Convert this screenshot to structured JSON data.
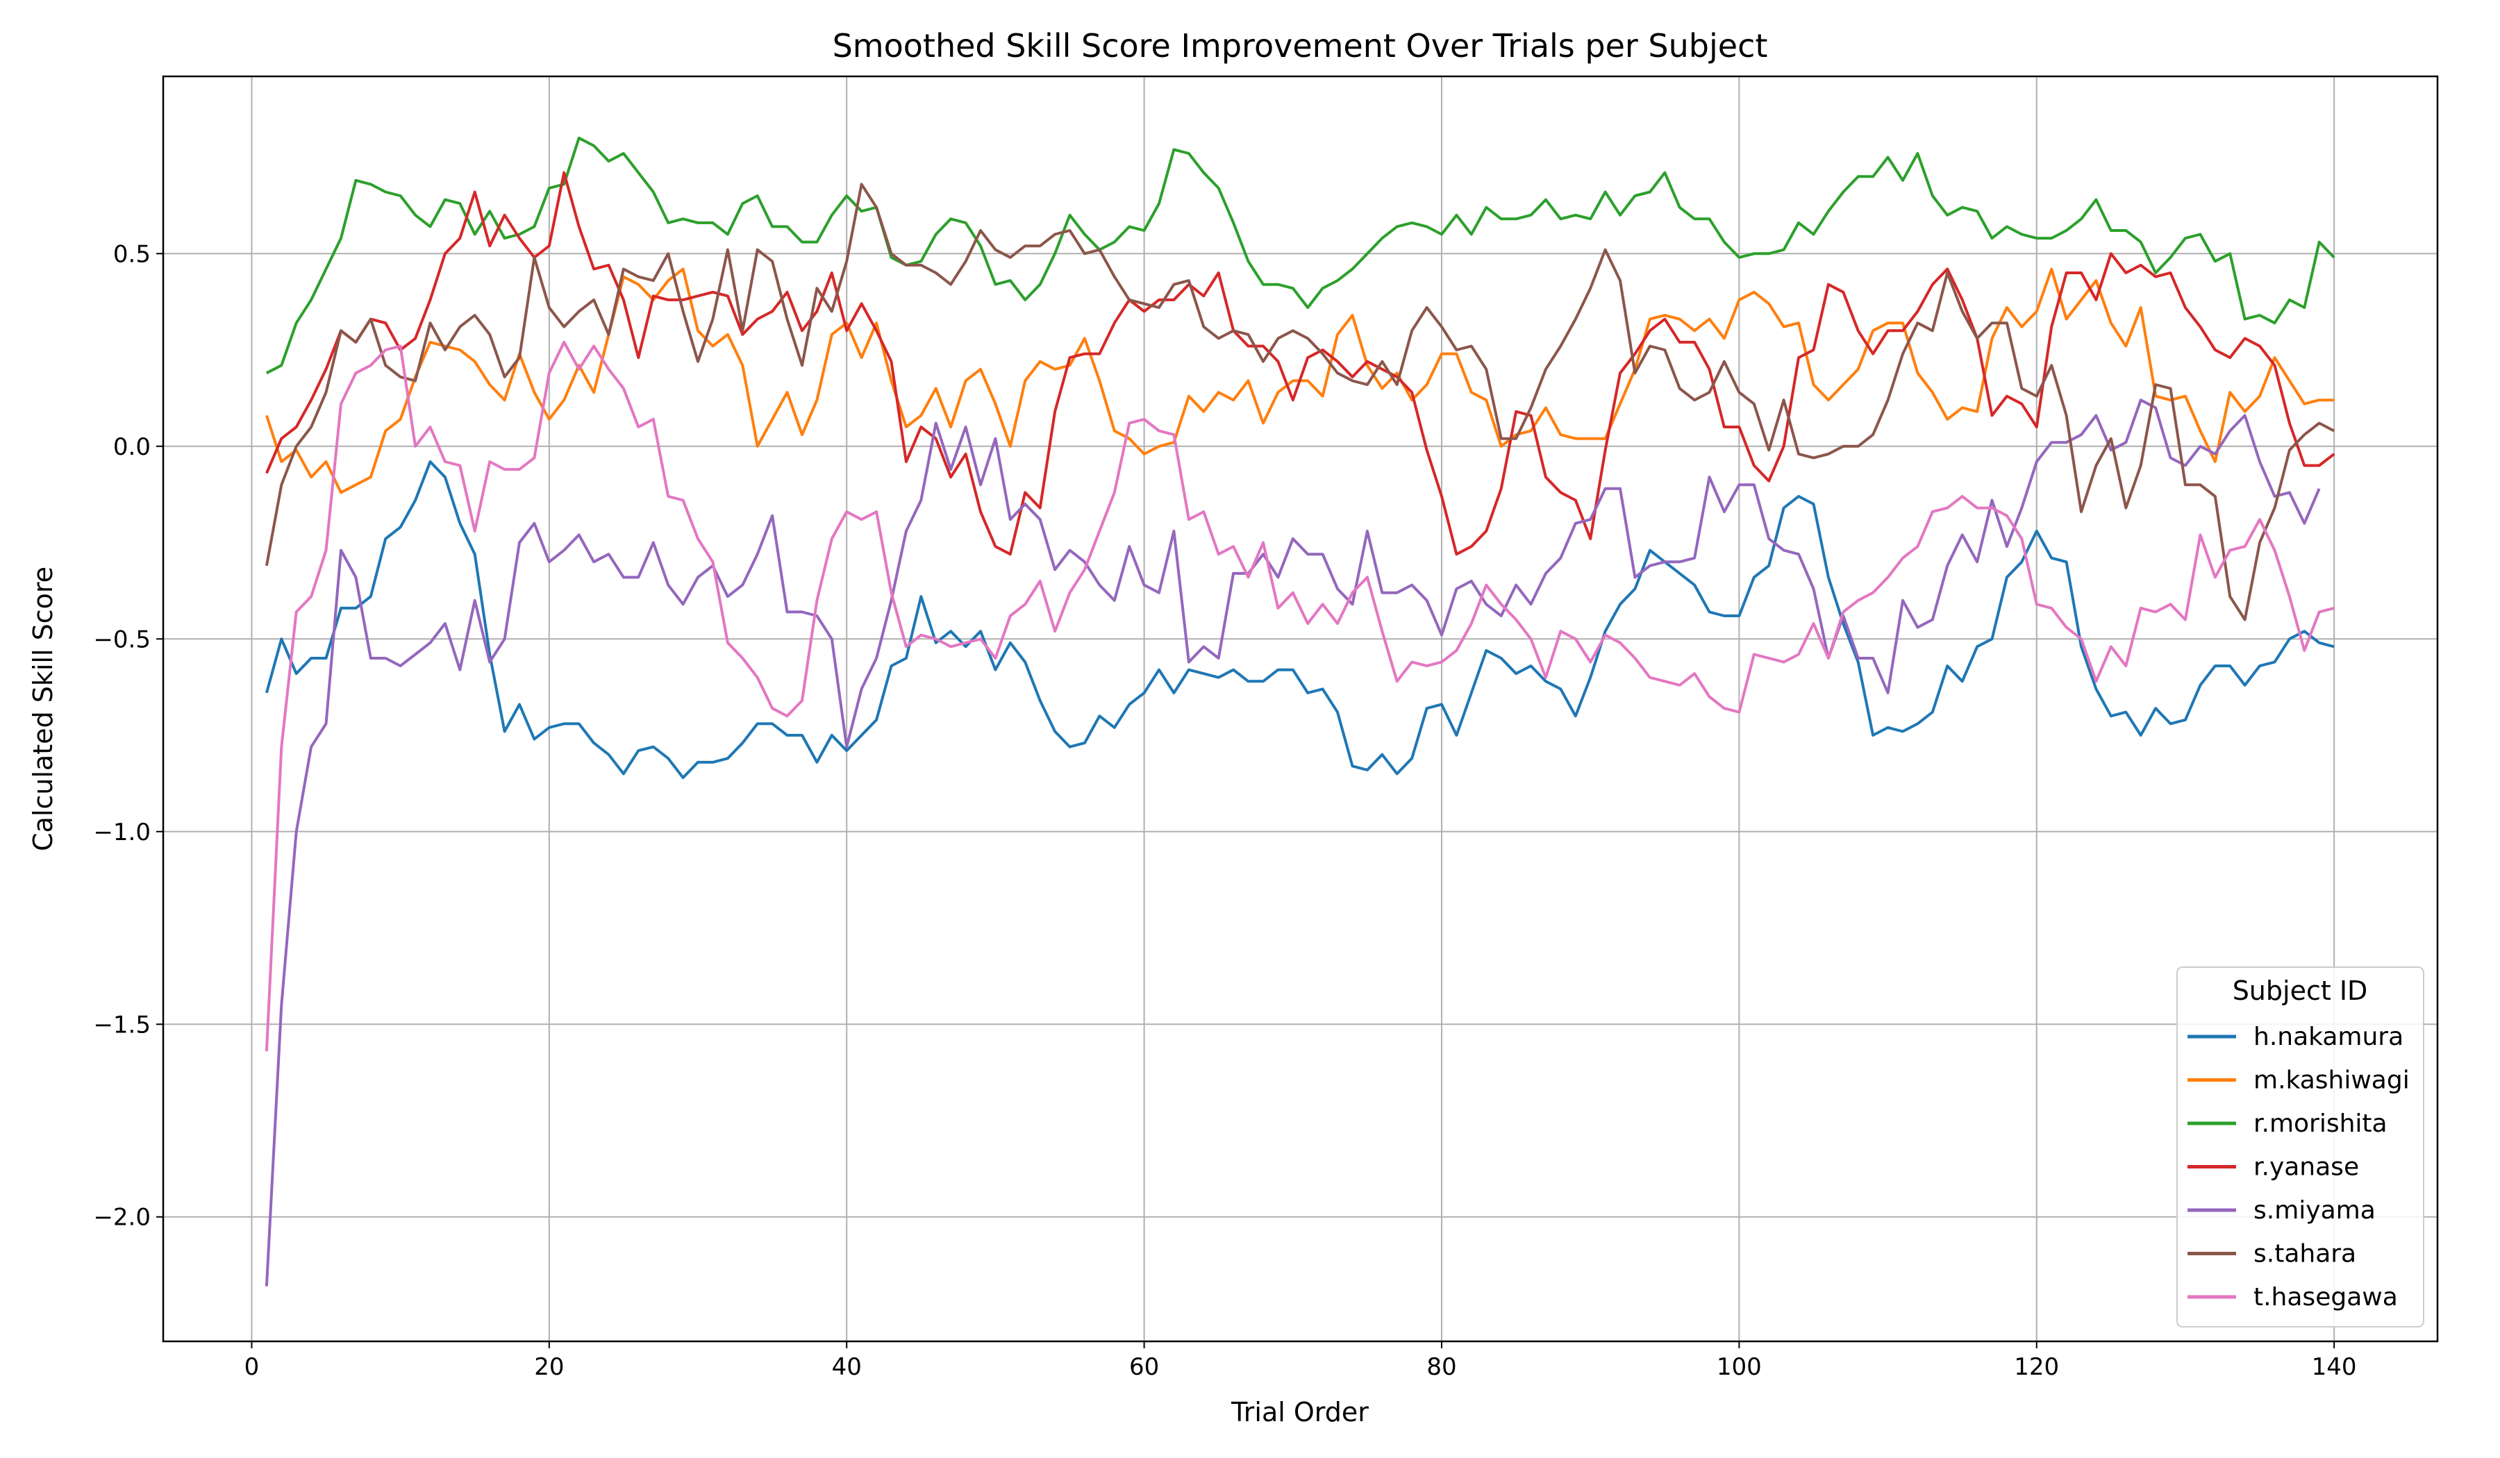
{
  "chart_data": {
    "type": "line",
    "title": "Smoothed Skill Score Improvement Over Trials per Subject",
    "xlabel": "Trial Order",
    "ylabel": "Calculated Skill Score",
    "xlim": [
      -5.95,
      146.95
    ],
    "ylim": [
      -2.323,
      0.96
    ],
    "xticks": [
      0,
      20,
      40,
      60,
      80,
      100,
      120,
      140
    ],
    "xtick_labels": [
      "0",
      "20",
      "40",
      "60",
      "80",
      "100",
      "120",
      "140"
    ],
    "yticks": [
      -2.0,
      -1.5,
      -1.0,
      -0.5,
      0.0,
      0.5
    ],
    "ytick_labels": [
      "−2.0",
      "−1.5",
      "−1.0",
      "−0.5",
      "0.0",
      "0.5"
    ],
    "grid": true,
    "legend": {
      "title": "Subject ID",
      "placement": "lower-right"
    },
    "x_start": 1,
    "series": [
      {
        "name": "h.nakamura",
        "color": "#1f77b4",
        "values": [
          -0.64,
          -0.5,
          -0.59,
          -0.55,
          -0.55,
          -0.42,
          -0.42,
          -0.39,
          -0.24,
          -0.21,
          -0.14,
          -0.04,
          -0.08,
          -0.2,
          -0.28,
          -0.54,
          -0.74,
          -0.67,
          -0.76,
          -0.73,
          -0.72,
          -0.72,
          -0.77,
          -0.8,
          -0.85,
          -0.79,
          -0.78,
          -0.81,
          -0.86,
          -0.82,
          -0.82,
          -0.81,
          -0.77,
          -0.72,
          -0.72,
          -0.75,
          -0.75,
          -0.82,
          -0.75,
          -0.79,
          -0.75,
          -0.71,
          -0.57,
          -0.55,
          -0.39,
          -0.51,
          -0.48,
          -0.52,
          -0.48,
          -0.58,
          -0.51,
          -0.56,
          -0.66,
          -0.74,
          -0.78,
          -0.77,
          -0.7,
          -0.73,
          -0.67,
          -0.64,
          -0.58,
          -0.64,
          -0.58,
          -0.59,
          -0.6,
          -0.58,
          -0.61,
          -0.61,
          -0.58,
          -0.58,
          -0.64,
          -0.63,
          -0.69,
          -0.83,
          -0.84,
          -0.8,
          -0.85,
          -0.81,
          -0.68,
          -0.67,
          -0.75,
          -0.64,
          -0.53,
          -0.55,
          -0.59,
          -0.57,
          -0.61,
          -0.63,
          -0.7,
          -0.6,
          -0.48,
          -0.41,
          -0.37,
          -0.27,
          -0.3,
          -0.33,
          -0.36,
          -0.43,
          -0.44,
          -0.44,
          -0.34,
          -0.31,
          -0.16,
          -0.13,
          -0.15,
          -0.34,
          -0.46,
          -0.56,
          -0.75,
          -0.73,
          -0.74,
          -0.72,
          -0.69,
          -0.57,
          -0.61,
          -0.52,
          -0.5,
          -0.34,
          -0.3,
          -0.22,
          -0.29,
          -0.3,
          -0.52,
          -0.63,
          -0.7,
          -0.69,
          -0.75,
          -0.68,
          -0.72,
          -0.71,
          -0.62,
          -0.57,
          -0.57,
          -0.62,
          -0.57,
          -0.56,
          -0.5,
          -0.48,
          -0.51,
          -0.52
        ]
      },
      {
        "name": "m.kashiwagi",
        "color": "#ff7f0e",
        "values": [
          0.08,
          -0.04,
          -0.01,
          -0.08,
          -0.04,
          -0.12,
          -0.1,
          -0.08,
          0.04,
          0.07,
          0.18,
          0.27,
          0.26,
          0.25,
          0.22,
          0.16,
          0.12,
          0.24,
          0.14,
          0.07,
          0.12,
          0.21,
          0.14,
          0.29,
          0.44,
          0.42,
          0.38,
          0.43,
          0.46,
          0.3,
          0.26,
          0.29,
          0.21,
          0.0,
          0.07,
          0.14,
          0.03,
          0.12,
          0.29,
          0.32,
          0.23,
          0.32,
          0.17,
          0.05,
          0.08,
          0.15,
          0.05,
          0.17,
          0.2,
          0.11,
          0.0,
          0.17,
          0.22,
          0.2,
          0.21,
          0.28,
          0.17,
          0.04,
          0.02,
          -0.02,
          0.0,
          0.01,
          0.13,
          0.09,
          0.14,
          0.12,
          0.17,
          0.06,
          0.14,
          0.17,
          0.17,
          0.13,
          0.29,
          0.34,
          0.21,
          0.15,
          0.19,
          0.12,
          0.16,
          0.24,
          0.24,
          0.14,
          0.12,
          0.0,
          0.03,
          0.04,
          0.1,
          0.03,
          0.02,
          0.02,
          0.02,
          0.11,
          0.2,
          0.33,
          0.34,
          0.33,
          0.3,
          0.33,
          0.28,
          0.38,
          0.4,
          0.37,
          0.31,
          0.32,
          0.16,
          0.12,
          0.16,
          0.2,
          0.3,
          0.32,
          0.32,
          0.19,
          0.14,
          0.07,
          0.1,
          0.09,
          0.28,
          0.36,
          0.31,
          0.35,
          0.46,
          0.33,
          0.38,
          0.43,
          0.32,
          0.26,
          0.36,
          0.13,
          0.12,
          0.13,
          0.04,
          -0.04,
          0.14,
          0.09,
          0.13,
          0.23,
          0.17,
          0.11,
          0.12,
          0.12
        ]
      },
      {
        "name": "r.morishita",
        "color": "#2ca02c",
        "values": [
          0.19,
          0.21,
          0.32,
          0.38,
          0.46,
          0.54,
          0.69,
          0.68,
          0.66,
          0.65,
          0.6,
          0.57,
          0.64,
          0.63,
          0.55,
          0.61,
          0.54,
          0.55,
          0.57,
          0.67,
          0.68,
          0.8,
          0.78,
          0.74,
          0.76,
          0.71,
          0.66,
          0.58,
          0.59,
          0.58,
          0.58,
          0.55,
          0.63,
          0.65,
          0.57,
          0.57,
          0.53,
          0.53,
          0.6,
          0.65,
          0.61,
          0.62,
          0.49,
          0.47,
          0.48,
          0.55,
          0.59,
          0.58,
          0.52,
          0.42,
          0.43,
          0.38,
          0.42,
          0.5,
          0.6,
          0.55,
          0.51,
          0.53,
          0.57,
          0.56,
          0.63,
          0.77,
          0.76,
          0.71,
          0.67,
          0.58,
          0.48,
          0.42,
          0.42,
          0.41,
          0.36,
          0.41,
          0.43,
          0.46,
          0.5,
          0.54,
          0.57,
          0.58,
          0.57,
          0.55,
          0.6,
          0.55,
          0.62,
          0.59,
          0.59,
          0.6,
          0.64,
          0.59,
          0.6,
          0.59,
          0.66,
          0.6,
          0.65,
          0.66,
          0.71,
          0.62,
          0.59,
          0.59,
          0.53,
          0.49,
          0.5,
          0.5,
          0.51,
          0.58,
          0.55,
          0.61,
          0.66,
          0.7,
          0.7,
          0.75,
          0.69,
          0.76,
          0.65,
          0.6,
          0.62,
          0.61,
          0.54,
          0.57,
          0.55,
          0.54,
          0.54,
          0.56,
          0.59,
          0.64,
          0.56,
          0.56,
          0.53,
          0.45,
          0.49,
          0.54,
          0.55,
          0.48,
          0.5,
          0.33,
          0.34,
          0.32,
          0.38,
          0.36,
          0.53,
          0.49
        ]
      },
      {
        "name": "r.yanase",
        "color": "#d62728",
        "values": [
          -0.07,
          0.02,
          0.05,
          0.12,
          0.2,
          0.3,
          0.27,
          0.33,
          0.32,
          0.25,
          0.28,
          0.38,
          0.5,
          0.54,
          0.66,
          0.52,
          0.6,
          0.54,
          0.49,
          0.52,
          0.71,
          0.57,
          0.46,
          0.47,
          0.38,
          0.23,
          0.39,
          0.38,
          0.38,
          0.39,
          0.4,
          0.39,
          0.29,
          0.33,
          0.35,
          0.4,
          0.3,
          0.35,
          0.45,
          0.3,
          0.37,
          0.3,
          0.22,
          -0.04,
          0.05,
          0.02,
          -0.08,
          -0.02,
          -0.17,
          -0.26,
          -0.28,
          -0.12,
          -0.16,
          0.09,
          0.23,
          0.24,
          0.24,
          0.32,
          0.38,
          0.35,
          0.38,
          0.38,
          0.42,
          0.39,
          0.45,
          0.3,
          0.26,
          0.26,
          0.22,
          0.12,
          0.23,
          0.25,
          0.22,
          0.18,
          0.22,
          0.2,
          0.18,
          0.14,
          -0.01,
          -0.13,
          -0.28,
          -0.26,
          -0.22,
          -0.11,
          0.09,
          0.08,
          -0.08,
          -0.12,
          -0.14,
          -0.24,
          -0.01,
          0.19,
          0.24,
          0.3,
          0.33,
          0.27,
          0.27,
          0.2,
          0.05,
          0.05,
          -0.05,
          -0.09,
          0.0,
          0.23,
          0.25,
          0.42,
          0.4,
          0.3,
          0.24,
          0.3,
          0.3,
          0.35,
          0.42,
          0.46,
          0.38,
          0.28,
          0.08,
          0.13,
          0.11,
          0.05,
          0.31,
          0.45,
          0.45,
          0.38,
          0.5,
          0.45,
          0.47,
          0.44,
          0.45,
          0.36,
          0.31,
          0.25,
          0.23,
          0.28,
          0.26,
          0.21,
          0.06,
          -0.05,
          -0.05,
          -0.02
        ]
      },
      {
        "name": "s.miyama",
        "color": "#9467bd",
        "values": [
          -2.18,
          -1.45,
          -1.0,
          -0.78,
          -0.72,
          -0.27,
          -0.34,
          -0.55,
          -0.55,
          -0.57,
          -0.54,
          -0.51,
          -0.46,
          -0.58,
          -0.4,
          -0.56,
          -0.5,
          -0.25,
          -0.2,
          -0.3,
          -0.27,
          -0.23,
          -0.3,
          -0.28,
          -0.34,
          -0.34,
          -0.25,
          -0.36,
          -0.41,
          -0.34,
          -0.31,
          -0.39,
          -0.36,
          -0.28,
          -0.18,
          -0.43,
          -0.43,
          -0.44,
          -0.5,
          -0.78,
          -0.63,
          -0.55,
          -0.4,
          -0.22,
          -0.14,
          0.06,
          -0.06,
          0.05,
          -0.1,
          0.02,
          -0.19,
          -0.15,
          -0.19,
          -0.32,
          -0.27,
          -0.3,
          -0.36,
          -0.4,
          -0.26,
          -0.36,
          -0.38,
          -0.22,
          -0.56,
          -0.52,
          -0.55,
          -0.33,
          -0.33,
          -0.28,
          -0.34,
          -0.24,
          -0.28,
          -0.28,
          -0.37,
          -0.41,
          -0.22,
          -0.38,
          -0.38,
          -0.36,
          -0.4,
          -0.49,
          -0.37,
          -0.35,
          -0.41,
          -0.44,
          -0.36,
          -0.41,
          -0.33,
          -0.29,
          -0.2,
          -0.19,
          -0.11,
          -0.11,
          -0.34,
          -0.31,
          -0.3,
          -0.3,
          -0.29,
          -0.08,
          -0.17,
          -0.1,
          -0.1,
          -0.24,
          -0.27,
          -0.28,
          -0.37,
          -0.55,
          -0.44,
          -0.55,
          -0.55,
          -0.64,
          -0.4,
          -0.47,
          -0.45,
          -0.31,
          -0.23,
          -0.3,
          -0.14,
          -0.26,
          -0.16,
          -0.04,
          0.01,
          0.01,
          0.03,
          0.08,
          -0.01,
          0.01,
          0.12,
          0.1,
          -0.03,
          -0.05,
          0.0,
          -0.02,
          0.04,
          0.08,
          -0.04,
          -0.13,
          -0.12,
          -0.2,
          -0.11
        ]
      },
      {
        "name": "s.tahara",
        "color": "#8c564b",
        "values": [
          -0.31,
          -0.1,
          0.0,
          0.05,
          0.14,
          0.3,
          0.27,
          0.33,
          0.21,
          0.18,
          0.17,
          0.32,
          0.25,
          0.31,
          0.34,
          0.29,
          0.18,
          0.23,
          0.49,
          0.36,
          0.31,
          0.35,
          0.38,
          0.29,
          0.46,
          0.44,
          0.43,
          0.5,
          0.35,
          0.22,
          0.33,
          0.51,
          0.3,
          0.51,
          0.48,
          0.33,
          0.21,
          0.41,
          0.35,
          0.48,
          0.68,
          0.62,
          0.5,
          0.47,
          0.47,
          0.45,
          0.42,
          0.48,
          0.56,
          0.51,
          0.49,
          0.52,
          0.52,
          0.55,
          0.56,
          0.5,
          0.51,
          0.44,
          0.38,
          0.37,
          0.36,
          0.42,
          0.43,
          0.31,
          0.28,
          0.3,
          0.29,
          0.22,
          0.28,
          0.3,
          0.28,
          0.24,
          0.19,
          0.17,
          0.16,
          0.22,
          0.16,
          0.3,
          0.36,
          0.31,
          0.25,
          0.26,
          0.2,
          0.02,
          0.02,
          0.1,
          0.2,
          0.26,
          0.33,
          0.41,
          0.51,
          0.43,
          0.19,
          0.26,
          0.25,
          0.15,
          0.12,
          0.14,
          0.22,
          0.14,
          0.11,
          -0.01,
          0.12,
          -0.02,
          -0.03,
          -0.02,
          0.0,
          0.0,
          0.03,
          0.12,
          0.24,
          0.32,
          0.3,
          0.45,
          0.35,
          0.28,
          0.32,
          0.32,
          0.15,
          0.13,
          0.21,
          0.08,
          -0.17,
          -0.05,
          0.02,
          -0.16,
          -0.05,
          0.16,
          0.15,
          -0.1,
          -0.1,
          -0.13,
          -0.39,
          -0.45,
          -0.25,
          -0.16,
          -0.01,
          0.03,
          0.06,
          0.04
        ]
      },
      {
        "name": "t.hasegawa",
        "color": "#e377c2",
        "values": [
          -1.57,
          -0.78,
          -0.43,
          -0.39,
          -0.27,
          0.11,
          0.19,
          0.21,
          0.25,
          0.26,
          0.0,
          0.05,
          -0.04,
          -0.05,
          -0.22,
          -0.04,
          -0.06,
          -0.06,
          -0.03,
          0.19,
          0.27,
          0.2,
          0.26,
          0.2,
          0.15,
          0.05,
          0.07,
          -0.13,
          -0.14,
          -0.24,
          -0.3,
          -0.51,
          -0.55,
          -0.6,
          -0.68,
          -0.7,
          -0.66,
          -0.4,
          -0.24,
          -0.17,
          -0.19,
          -0.17,
          -0.38,
          -0.52,
          -0.49,
          -0.5,
          -0.52,
          -0.51,
          -0.5,
          -0.55,
          -0.44,
          -0.41,
          -0.35,
          -0.48,
          -0.38,
          -0.32,
          -0.22,
          -0.12,
          0.06,
          0.07,
          0.04,
          0.03,
          -0.19,
          -0.17,
          -0.28,
          -0.26,
          -0.34,
          -0.25,
          -0.42,
          -0.38,
          -0.46,
          -0.41,
          -0.46,
          -0.38,
          -0.34,
          -0.48,
          -0.61,
          -0.56,
          -0.57,
          -0.56,
          -0.53,
          -0.46,
          -0.36,
          -0.41,
          -0.45,
          -0.5,
          -0.6,
          -0.48,
          -0.5,
          -0.56,
          -0.49,
          -0.51,
          -0.55,
          -0.6,
          -0.61,
          -0.62,
          -0.59,
          -0.65,
          -0.68,
          -0.69,
          -0.54,
          -0.55,
          -0.56,
          -0.54,
          -0.46,
          -0.55,
          -0.43,
          -0.4,
          -0.38,
          -0.34,
          -0.29,
          -0.26,
          -0.17,
          -0.16,
          -0.13,
          -0.16,
          -0.16,
          -0.18,
          -0.24,
          -0.41,
          -0.42,
          -0.47,
          -0.5,
          -0.61,
          -0.52,
          -0.57,
          -0.42,
          -0.43,
          -0.41,
          -0.45,
          -0.23,
          -0.34,
          -0.27,
          -0.26,
          -0.19,
          -0.27,
          -0.39,
          -0.53,
          -0.43,
          -0.42
        ]
      }
    ]
  }
}
